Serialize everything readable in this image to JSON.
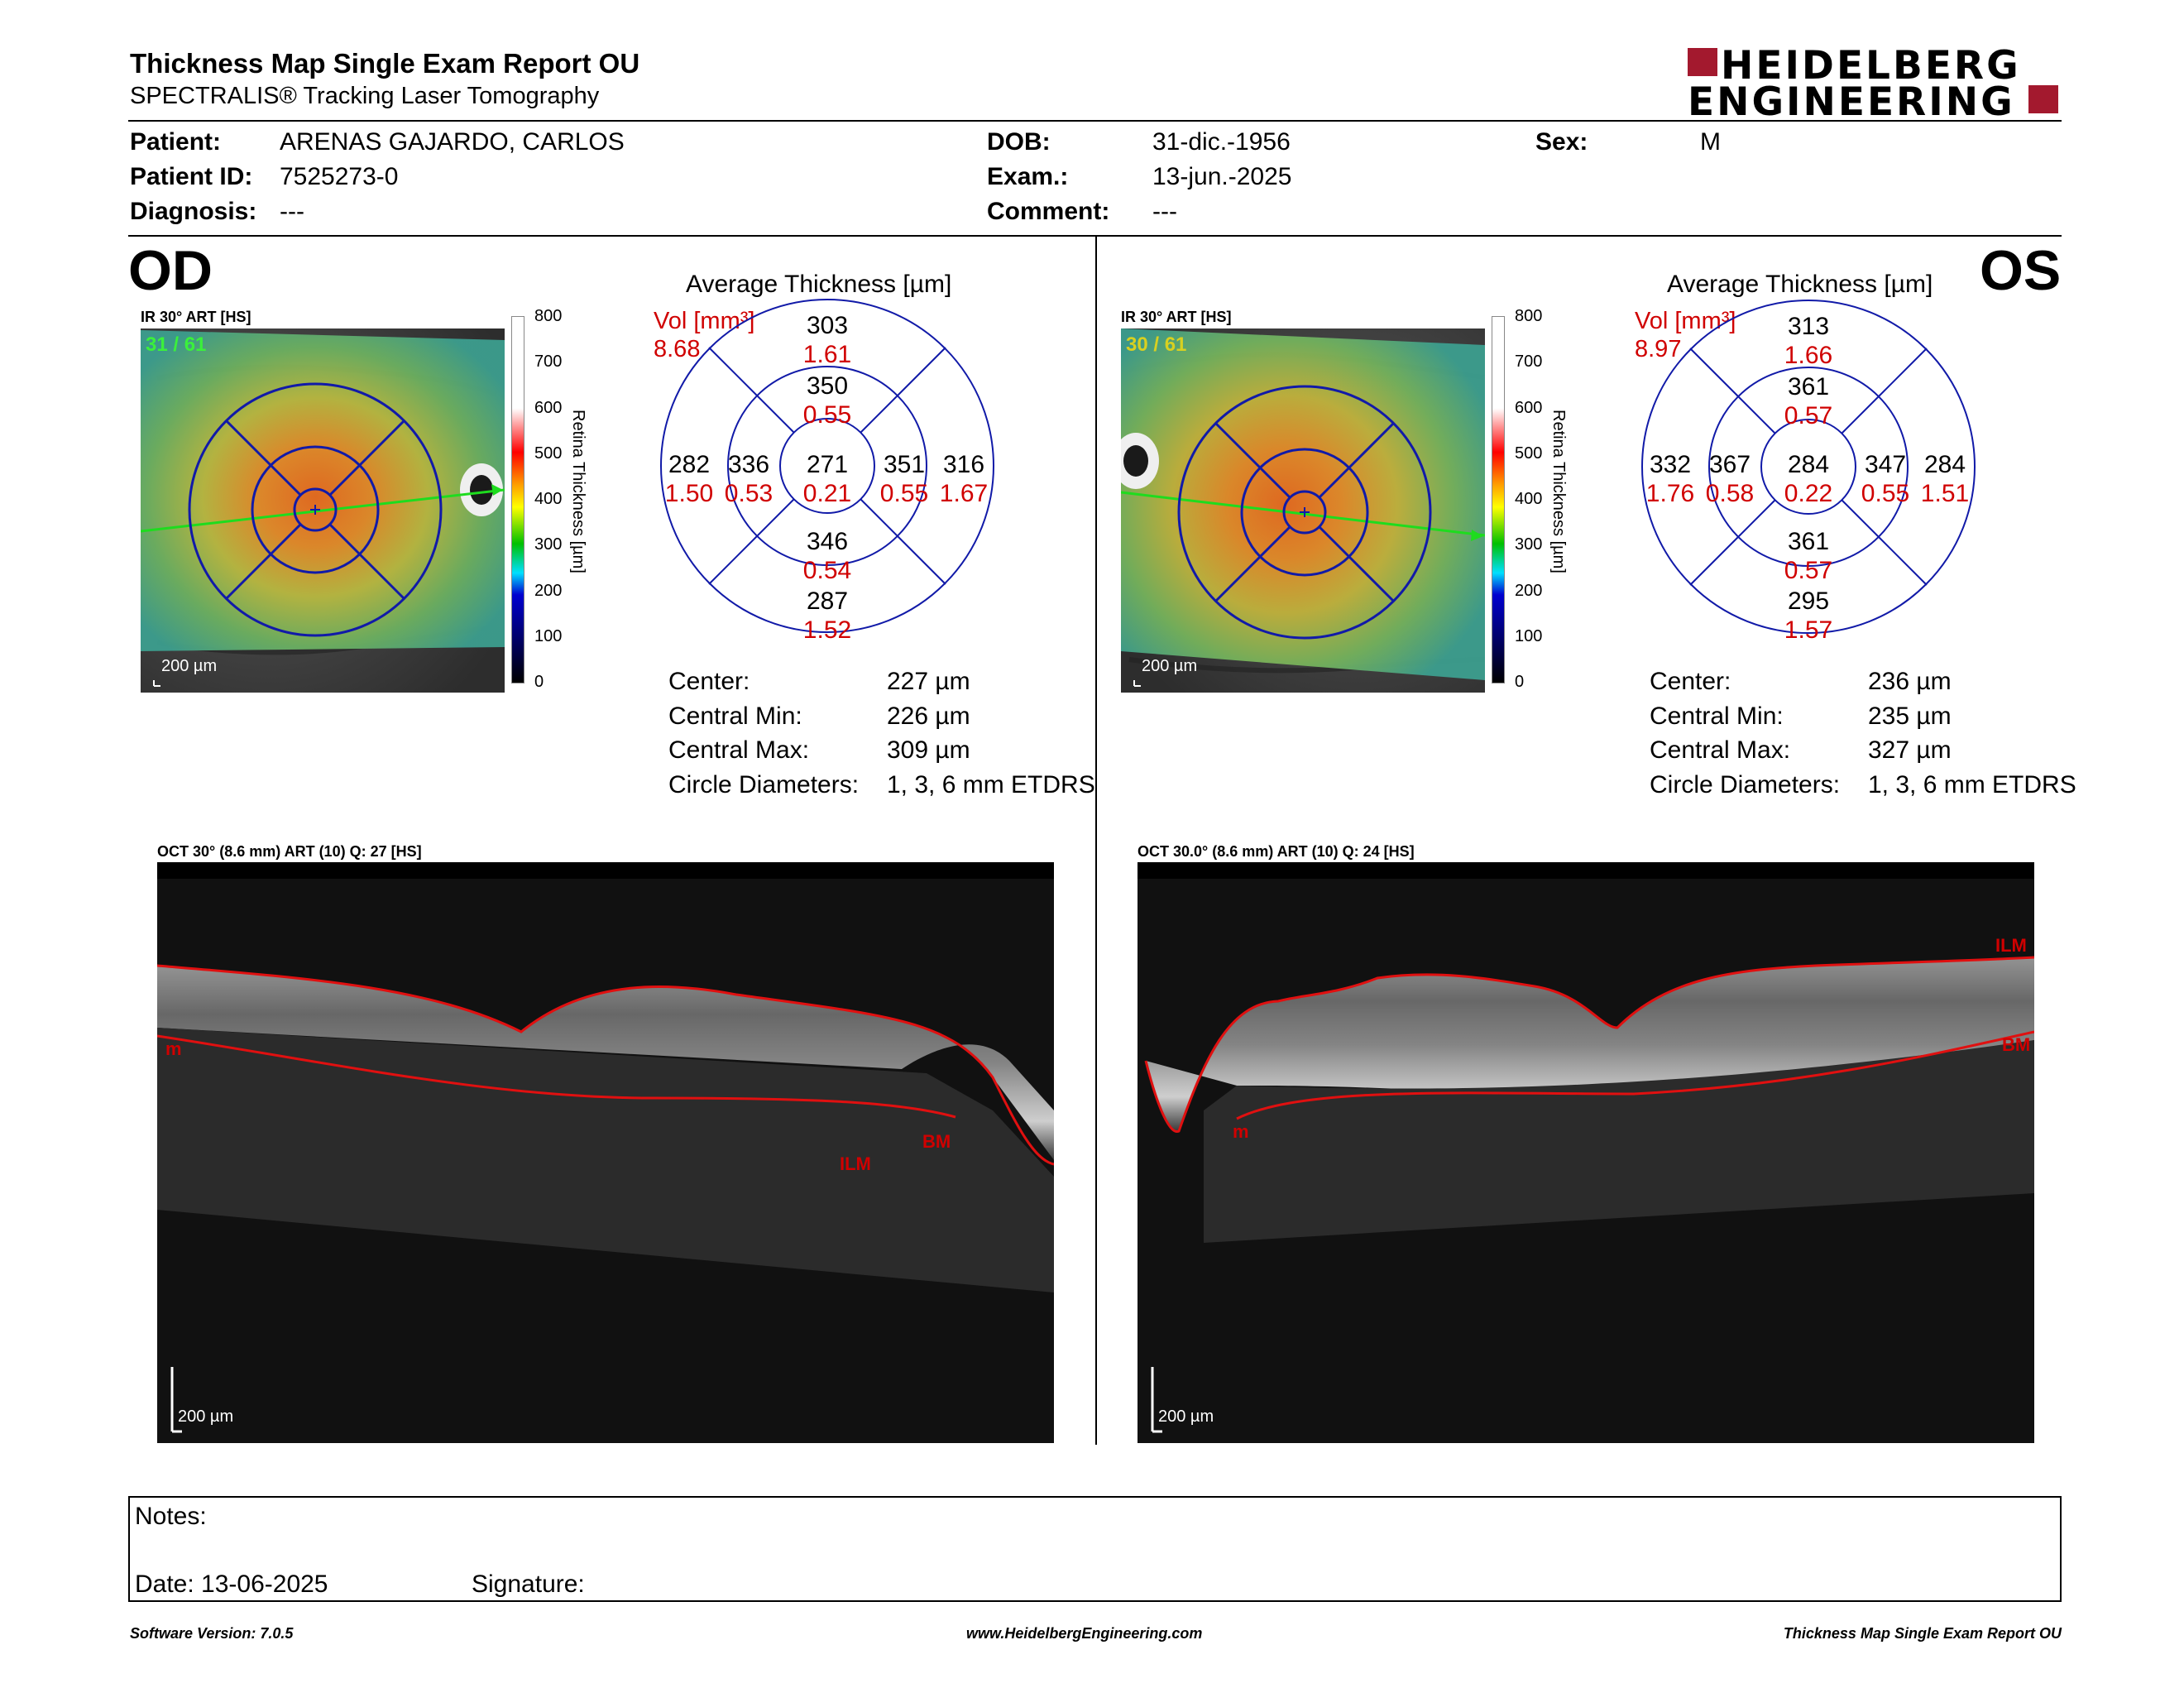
{
  "header": {
    "title": "Thickness Map Single Exam Report OU",
    "subtitle": "SPECTRALIS® Tracking Laser Tomography",
    "logo_line1": "HEIDELBERG",
    "logo_line2": "ENGINEERING",
    "brand_color": "#a3192e"
  },
  "patient": {
    "patient_label": "Patient:",
    "patient_value": "ARENAS GAJARDO, CARLOS",
    "id_label": "Patient ID:",
    "id_value": "7525273-0",
    "diagnosis_label": "Diagnosis:",
    "diagnosis_value": "---",
    "dob_label": "DOB:",
    "dob_value": "31-dic.-1956",
    "exam_label": "Exam.:",
    "exam_value": "13-jun.-2025",
    "comment_label": "Comment:",
    "comment_value": "---",
    "sex_label": "Sex:",
    "sex_value": "M"
  },
  "od": {
    "eye": "OD",
    "ir_label": "IR 30° ART [HS]",
    "frame": "31 / 61",
    "scale": "200 µm",
    "grid_title": "Average Thickness [µm]",
    "vol_label": "Vol [mm³]",
    "vol_value": "8.68",
    "center_t": "271",
    "center_v": "0.21",
    "inner_sup_t": "350",
    "inner_sup_v": "0.55",
    "inner_inf_t": "346",
    "inner_inf_v": "0.54",
    "inner_left_t": "336",
    "inner_left_v": "0.53",
    "inner_right_t": "351",
    "inner_right_v": "0.55",
    "outer_sup_t": "303",
    "outer_sup_v": "1.61",
    "outer_inf_t": "287",
    "outer_inf_v": "1.52",
    "outer_left_t": "282",
    "outer_left_v": "1.50",
    "outer_right_t": "316",
    "outer_right_v": "1.67",
    "center_label": "Center:",
    "center_value": "227 µm",
    "cmin_label": "Central Min:",
    "cmin_value": "226 µm",
    "cmax_label": "Central Max:",
    "cmax_value": "309 µm",
    "diam_label": "Circle Diameters:",
    "diam_value": "1, 3, 6 mm ETDRS",
    "oct_label": "OCT 30° (8.6 mm) ART (10) Q: 27 [HS]",
    "oct_scale": "200 µm",
    "layer_ilm": "ILM",
    "layer_bm": "BM",
    "layer_m": "m"
  },
  "os": {
    "eye": "OS",
    "ir_label": "IR 30° ART [HS]",
    "frame": "30 / 61",
    "scale": "200 µm",
    "grid_title": "Average Thickness [µm]",
    "vol_label": "Vol [mm³]",
    "vol_value": "8.97",
    "center_t": "284",
    "center_v": "0.22",
    "inner_sup_t": "361",
    "inner_sup_v": "0.57",
    "inner_inf_t": "361",
    "inner_inf_v": "0.57",
    "inner_left_t": "367",
    "inner_left_v": "0.58",
    "inner_right_t": "347",
    "inner_right_v": "0.55",
    "outer_sup_t": "313",
    "outer_sup_v": "1.66",
    "outer_inf_t": "295",
    "outer_inf_v": "1.57",
    "outer_left_t": "332",
    "outer_left_v": "1.76",
    "outer_right_t": "284",
    "outer_right_v": "1.51",
    "center_label": "Center:",
    "center_value": "236 µm",
    "cmin_label": "Central Min:",
    "cmin_value": "235 µm",
    "cmax_label": "Central Max:",
    "cmax_value": "327 µm",
    "diam_label": "Circle Diameters:",
    "diam_value": "1, 3, 6 mm ETDRS",
    "oct_label": "OCT 30.0° (8.6 mm) ART (10) Q: 24 [HS]",
    "oct_scale": "200 µm",
    "layer_ilm": "ILM",
    "layer_bm": "BM",
    "layer_m": "m"
  },
  "colorbar": {
    "ticks": [
      "800",
      "700",
      "600",
      "500",
      "400",
      "300",
      "200",
      "100",
      "0"
    ],
    "label": "Retina Thickness [µm]"
  },
  "notes": {
    "notes_label": "Notes:",
    "date_label": "Date: 13-06-2025",
    "signature_label": "Signature:"
  },
  "footer": {
    "left": "Software Version: 7.0.5",
    "center": "www.HeidelbergEngineering.com",
    "right": "Thickness Map Single Exam Report OU"
  }
}
